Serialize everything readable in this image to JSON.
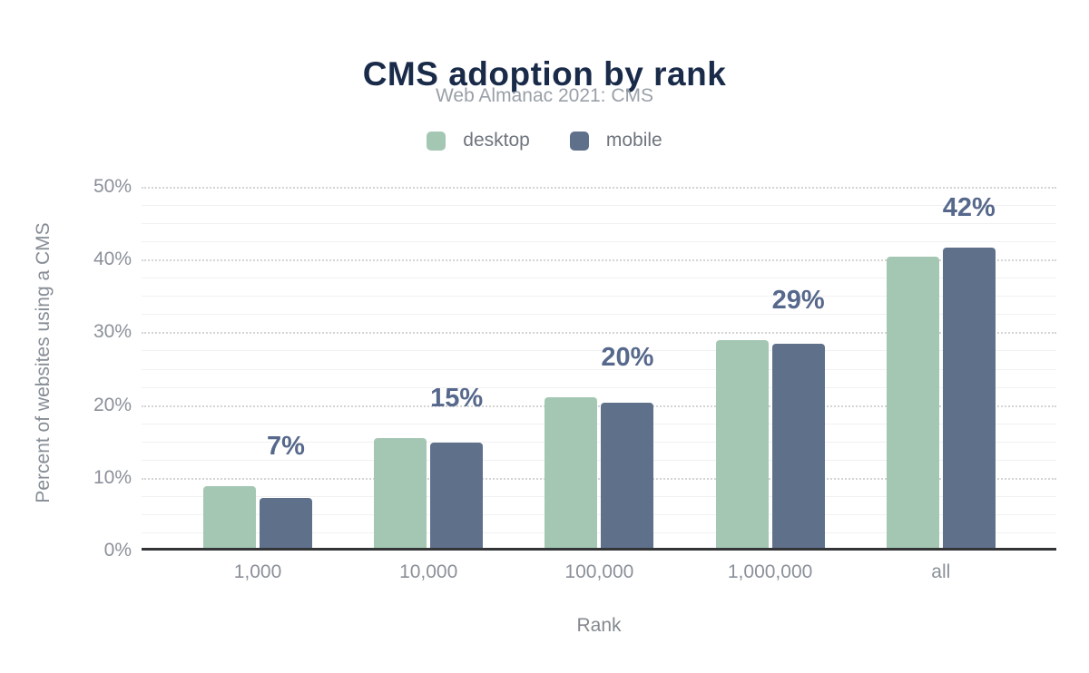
{
  "chart": {
    "title": "CMS adoption by rank",
    "subtitle": "Web Almanac 2021: CMS",
    "x_axis_label": "Rank",
    "y_axis_label": "Percent of websites using a CMS",
    "title_color": "#1a2b49",
    "annotation_color": "#56688b"
  },
  "chart_data": {
    "type": "bar",
    "title": "CMS adoption by rank",
    "subtitle": "Web Almanac 2021: CMS",
    "xlabel": "Rank",
    "ylabel": "Percent of websites using a CMS",
    "categories": [
      "1,000",
      "10,000",
      "100,000",
      "1,000,000",
      "all"
    ],
    "series": [
      {
        "name": "desktop",
        "color": "#a4c7b4",
        "values": [
          8.9,
          15.5,
          21.1,
          28.9,
          40.4
        ]
      },
      {
        "name": "mobile",
        "color": "#5f708b",
        "values": [
          7.2,
          14.9,
          20.3,
          28.4,
          41.6
        ]
      }
    ],
    "annotations": [
      "7%",
      "15%",
      "20%",
      "29%",
      "42%"
    ],
    "annotations_over_series": "mobile",
    "ylim": [
      0,
      50
    ],
    "yticks": [
      0,
      10,
      20,
      30,
      40,
      50
    ],
    "ytick_labels": [
      "0%",
      "10%",
      "20%",
      "30%",
      "40%",
      "50%"
    ],
    "minor_grid_step": 2.5,
    "grid": true,
    "legend_position": "top"
  }
}
